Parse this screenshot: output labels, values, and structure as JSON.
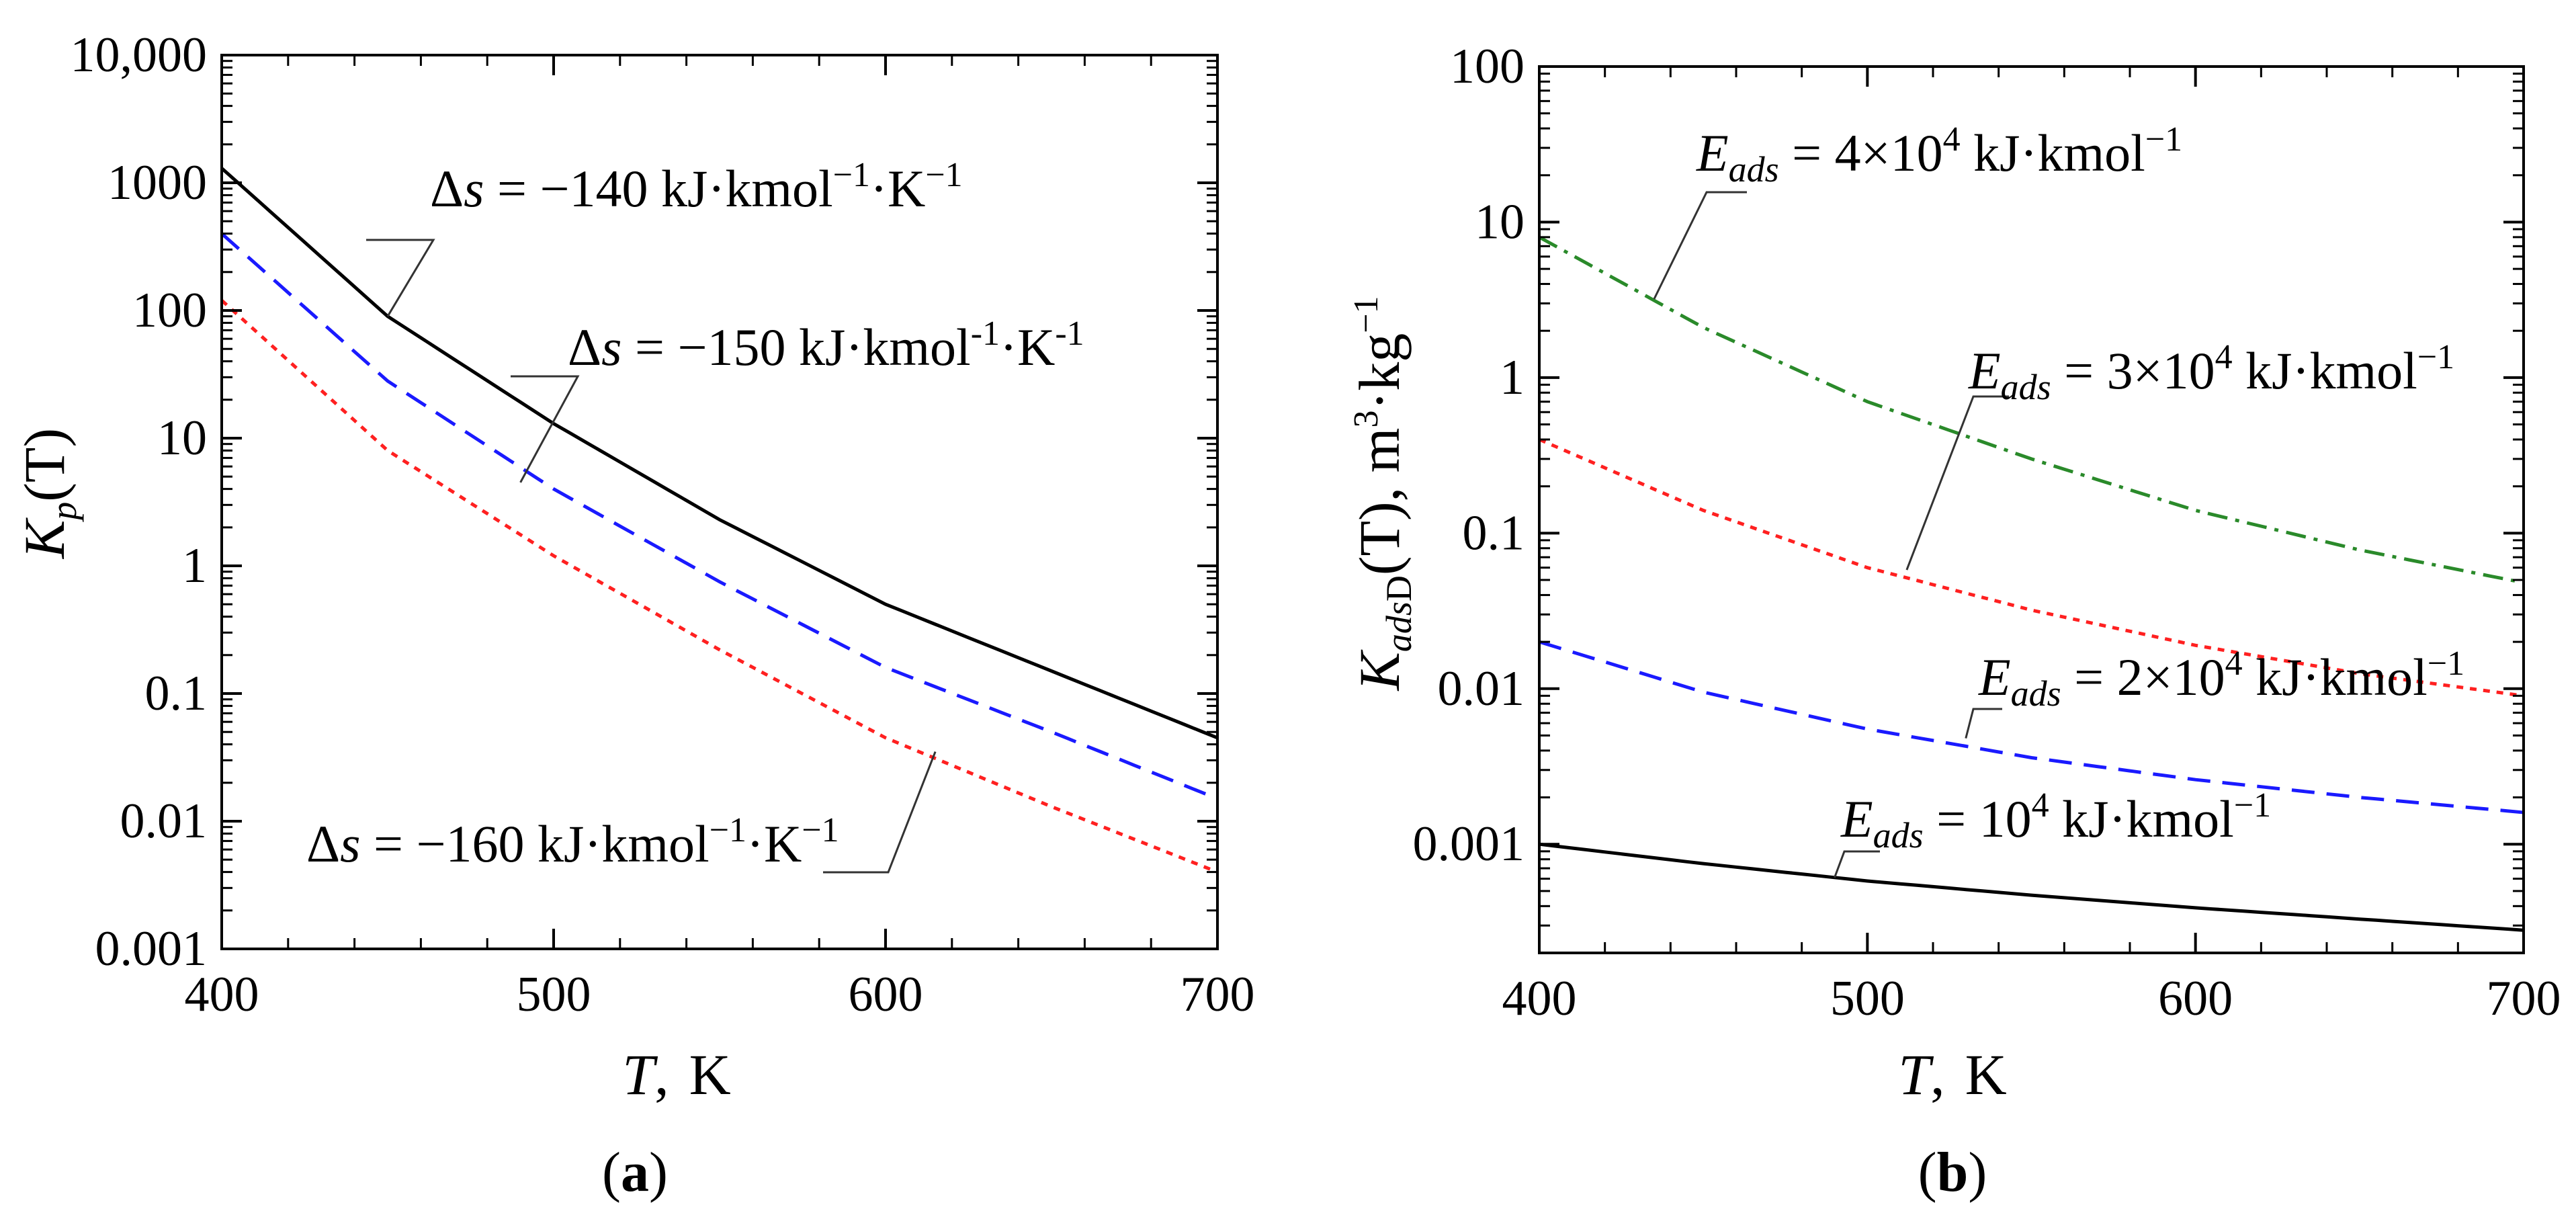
{
  "chart_data": [
    {
      "type": "line",
      "panel_label": "a",
      "title": "",
      "xlabel": {
        "var": "T",
        "sep": ",",
        "unit": "K"
      },
      "ylabel": {
        "main": "K",
        "sub": "p",
        "arg": "(T)"
      },
      "x_scale": "linear",
      "y_scale": "log",
      "xlim": [
        400,
        700
      ],
      "ylim": [
        0.001,
        10000
      ],
      "x_ticks": [
        400,
        500,
        600,
        700
      ],
      "x_tick_labels": [
        "400",
        "500",
        "600",
        "700"
      ],
      "y_ticks": [
        0.001,
        0.01,
        0.1,
        1,
        10,
        100,
        1000,
        10000
      ],
      "y_tick_labels": [
        "0.001",
        "0.01",
        "0.1",
        "1",
        "10",
        "100",
        "1000",
        "10,000"
      ],
      "grid": false,
      "series": [
        {
          "name": "Δs = −140",
          "color": "#000000",
          "dash": "solid",
          "x": [
            400,
            450,
            500,
            550,
            600,
            650,
            700
          ],
          "y": [
            1300,
            90,
            13,
            2.3,
            0.5,
            0.15,
            0.045
          ]
        },
        {
          "name": "Δs = −150",
          "color": "#1a1aff",
          "dash": "dashed",
          "x": [
            400,
            450,
            500,
            550,
            600,
            650,
            700
          ],
          "y": [
            400,
            28,
            4,
            0.75,
            0.16,
            0.05,
            0.015
          ]
        },
        {
          "name": "Δs = −160",
          "color": "#ff2020",
          "dash": "dotted",
          "x": [
            400,
            450,
            500,
            550,
            600,
            650,
            700
          ],
          "y": [
            120,
            8,
            1.2,
            0.22,
            0.045,
            0.013,
            0.004
          ]
        }
      ],
      "annotations": [
        {
          "lhs": "Δ",
          "lhs_it": "s",
          "eq": " = −140 kJ·kmol",
          "sup1": "−1",
          "mid": "·K",
          "sup2": "−1",
          "target": {
            "x": 450,
            "y": 90
          }
        },
        {
          "lhs": "Δ",
          "lhs_it": "s",
          "eq": " = −150 kJ·kmol",
          "sup1": "-1",
          "mid": "·K",
          "sup2": "-1",
          "target": {
            "x": 490,
            "y": 4.5
          }
        },
        {
          "lhs": "Δ",
          "lhs_it": "s",
          "eq": " = −160 kJ·kmol",
          "sup1": "−1",
          "mid": "·K",
          "sup2": "−1",
          "target": {
            "x": 615,
            "y": 0.035
          }
        }
      ]
    },
    {
      "type": "line",
      "panel_label": "b",
      "title": "",
      "xlabel": {
        "var": "T",
        "sep": ",",
        "unit": "K"
      },
      "ylabel": {
        "main": "K",
        "sub_it": "ads",
        "sub_rm": "D",
        "arg": "(T), m",
        "sup1": "3",
        "mid": "·kg",
        "sup2": "−1"
      },
      "x_scale": "linear",
      "y_scale": "log",
      "xlim": [
        400,
        700
      ],
      "ylim": [
        0.0002,
        100
      ],
      "x_ticks": [
        400,
        500,
        600,
        700
      ],
      "x_tick_labels": [
        "400",
        "500",
        "600",
        "700"
      ],
      "y_ticks": [
        0.001,
        0.01,
        0.1,
        1,
        10,
        100
      ],
      "y_tick_labels": [
        "0.001",
        "0.01",
        "0.1",
        "1",
        "10",
        "100"
      ],
      "grid": false,
      "series": [
        {
          "name": "E_ads = 10^4",
          "color": "#000000",
          "dash": "solid",
          "x": [
            400,
            450,
            500,
            550,
            600,
            650,
            700
          ],
          "y": [
            0.001,
            0.00075,
            0.00058,
            0.00047,
            0.00039,
            0.00033,
            0.00028
          ]
        },
        {
          "name": "E_ads = 2×10^4",
          "color": "#1a1aff",
          "dash": "dashed",
          "x": [
            400,
            450,
            500,
            550,
            600,
            650,
            700
          ],
          "y": [
            0.02,
            0.0095,
            0.0055,
            0.0036,
            0.0026,
            0.002,
            0.0016
          ]
        },
        {
          "name": "E_ads = 3×10^4",
          "color": "#ff2020",
          "dash": "dotted",
          "x": [
            400,
            450,
            500,
            550,
            600,
            650,
            700
          ],
          "y": [
            0.4,
            0.14,
            0.06,
            0.032,
            0.019,
            0.0125,
            0.009
          ]
        },
        {
          "name": "E_ads = 4×10^4",
          "color": "#2a8a2a",
          "dash": "dashdot",
          "x": [
            400,
            450,
            500,
            550,
            600,
            650,
            700
          ],
          "y": [
            8,
            2.1,
            0.7,
            0.3,
            0.14,
            0.078,
            0.048
          ]
        }
      ],
      "annotations": [
        {
          "lhs": "E",
          "sub": "ads",
          "eq": " = 4×10",
          "sup1": "4",
          "rest": " kJ·kmol",
          "sup2": "−1",
          "target": {
            "x": 435,
            "y": 3.2
          }
        },
        {
          "lhs": "E",
          "sub": "ads",
          "eq": " = 3×10",
          "sup1": "4",
          "rest": " kJ·kmol",
          "sup2": "−1",
          "target": {
            "x": 512,
            "y": 0.058
          }
        },
        {
          "lhs": "E",
          "sub": "ads",
          "eq": " = 2×10",
          "sup1": "4",
          "rest": " kJ·kmol",
          "sup2": "−1",
          "target": {
            "x": 530,
            "y": 0.0048
          }
        },
        {
          "lhs": "E",
          "sub": "ads",
          "eq": " = 10",
          "sup1": "4",
          "rest": " kJ·kmol",
          "sup2": "−1",
          "target": {
            "x": 490,
            "y": 0.00061
          }
        }
      ]
    }
  ]
}
